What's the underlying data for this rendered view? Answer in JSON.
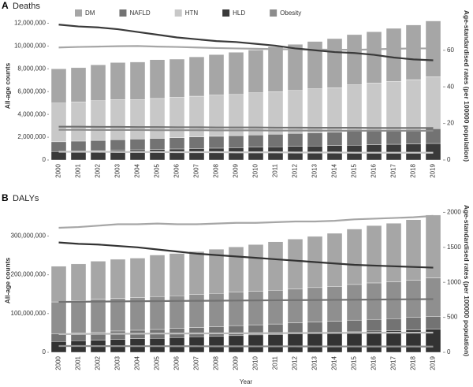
{
  "chart_data": [
    {
      "type": "bar",
      "panel_label": "A",
      "title": "Deaths",
      "legend": "top",
      "ylabel": "All-age counts",
      "y2label": "Age-standardised rates (per 100000 population)",
      "categories": [
        "2000",
        "2001",
        "2002",
        "2003",
        "2004",
        "2005",
        "2006",
        "2007",
        "2008",
        "2009",
        "2010",
        "2011",
        "2012",
        "2013",
        "2014",
        "2015",
        "2016",
        "2017",
        "2018",
        "2019"
      ],
      "ylim": [
        0,
        13000000
      ],
      "yticks": [
        0,
        {
          "value": 2000000,
          "label": "2,000,000"
        },
        {
          "value": 4000000,
          "label": "4,000,000"
        },
        {
          "value": 6000000,
          "label": "6,000,000"
        },
        {
          "value": 8000000,
          "label": "8,000,000"
        },
        {
          "value": 10000000,
          "label": "10,000,000"
        },
        {
          "value": 12000000,
          "label": "12,000,000"
        }
      ],
      "y2lim": [
        0,
        81
      ],
      "y2ticks": [
        0,
        20,
        40,
        60
      ],
      "series": [
        {
          "name": "DM",
          "color": "#a6a6a6",
          "stack_order": 4,
          "values": [
            3000000,
            3000000,
            3150000,
            3250000,
            3300000,
            3400000,
            3350000,
            3450000,
            3550000,
            3700000,
            3750000,
            3950000,
            4050000,
            4150000,
            4300000,
            4400000,
            4500000,
            4650000,
            4800000,
            4900000
          ],
          "rates": [
            61.5,
            61.8,
            62,
            62.2,
            62.3,
            62,
            61.8,
            61.5,
            61.2,
            61,
            60.8,
            60.6,
            60.5,
            60.4,
            60.3,
            60.2,
            60.5,
            60.8,
            61,
            61
          ]
        },
        {
          "name": "NAFLD",
          "color": "#737373",
          "stack_order": 2,
          "values": [
            850000,
            870000,
            900000,
            920000,
            940000,
            970000,
            990000,
            1010000,
            1040000,
            1060000,
            1080000,
            1100000,
            1140000,
            1160000,
            1180000,
            1210000,
            1230000,
            1250000,
            1280000,
            1300000
          ],
          "rates": [
            18.2,
            18.2,
            18.1,
            18.1,
            18,
            18,
            17.9,
            17.9,
            17.8,
            17.8,
            17.8,
            17.7,
            17.7,
            17.6,
            17.6,
            17.6,
            17.5,
            17.5,
            17.5,
            17.5
          ]
        },
        {
          "name": "HTN",
          "color": "#c8c8c8",
          "stack_order": 3,
          "values": [
            3400000,
            3440000,
            3480000,
            3520000,
            3460000,
            3500000,
            3540000,
            3580000,
            3620000,
            3610000,
            3700000,
            3740000,
            3770000,
            3860000,
            3900000,
            4090000,
            4180000,
            4270000,
            4360000,
            4550000
          ],
          "rates": [
            4.5,
            4.5,
            4.5,
            4.4,
            4.4,
            4.4,
            4.3,
            4.3,
            4.3,
            4.2,
            4.2,
            4.2,
            4.1,
            4.1,
            4.1,
            4,
            4,
            4,
            4,
            4
          ]
        },
        {
          "name": "HLD",
          "color": "#3a3a3a",
          "stack_order": 1,
          "values": [
            750000,
            790000,
            820000,
            860000,
            900000,
            930000,
            970000,
            1010000,
            1040000,
            1080000,
            1120000,
            1160000,
            1190000,
            1230000,
            1270000,
            1300000,
            1340000,
            1380000,
            1410000,
            1450000
          ],
          "rates": [
            74,
            73,
            72.5,
            71.5,
            70,
            68.5,
            67,
            66,
            65,
            64.5,
            63.5,
            62.5,
            61,
            60,
            59,
            58.5,
            57.5,
            56,
            55,
            54.5
          ]
        },
        {
          "name": "Obesity",
          "color": "#8c8c8c",
          "stack_order": 5,
          "values": [
            null,
            null,
            null,
            null,
            null,
            null,
            null,
            null,
            null,
            null,
            null,
            null,
            null,
            null,
            null,
            null,
            null,
            null,
            null,
            null
          ],
          "rates": [
            16.5,
            16.5,
            16.4,
            16.4,
            16.4,
            16.3,
            16.3,
            16.3,
            16.2,
            16.2,
            16.2,
            16.1,
            16.1,
            16.1,
            16,
            16,
            16,
            16,
            16,
            16
          ]
        }
      ]
    },
    {
      "type": "bar",
      "panel_label": "B",
      "title": "DALYs",
      "xlabel": "Year",
      "ylabel": "All-age counts",
      "y2label": "Age-standardised rates (per 100000 population)",
      "categories": [
        "2000",
        "2001",
        "2002",
        "2003",
        "2004",
        "2005",
        "2006",
        "2007",
        "2008",
        "2009",
        "2010",
        "2011",
        "2012",
        "2013",
        "2014",
        "2015",
        "2016",
        "2017",
        "2018",
        "2019"
      ],
      "ylim": [
        0,
        370000000
      ],
      "yticks": [
        0,
        {
          "value": 100000000,
          "label": "100,000,000"
        },
        {
          "value": 200000000,
          "label": "200,000,000"
        },
        {
          "value": 300000000,
          "label": "300,000,000"
        }
      ],
      "y2lim": [
        0,
        2050
      ],
      "y2ticks": [
        0,
        500,
        1000,
        1500,
        2000
      ],
      "series": [
        {
          "color": "#a6a6a6",
          "stack_order": 4,
          "values": [
            92000000,
            95000000,
            98000000,
            101000000,
            102000000,
            107000000,
            109000000,
            111000000,
            114000000,
            117000000,
            121000000,
            125000000,
            129000000,
            132000000,
            137000000,
            143000000,
            148000000,
            151000000,
            156000000,
            162000000
          ],
          "rates": [
            1780,
            1790,
            1810,
            1830,
            1830,
            1840,
            1830,
            1830,
            1840,
            1850,
            1850,
            1860,
            1870,
            1870,
            1880,
            1900,
            1910,
            1920,
            1930,
            1950
          ]
        },
        {
          "color": "#737373",
          "stack_order": 2,
          "values": [
            20000000,
            20000000,
            21000000,
            22000000,
            22000000,
            23000000,
            24000000,
            24000000,
            25000000,
            26000000,
            26000000,
            27000000,
            28000000,
            28000000,
            29000000,
            30000000,
            30000000,
            31000000,
            32000000,
            32000000
          ],
          "rates": [
            720,
            722,
            725,
            728,
            730,
            732,
            734,
            736,
            738,
            740,
            742,
            744,
            746,
            748,
            750,
            752,
            754,
            756,
            758,
            760
          ]
        },
        {
          "color": "#8f8f8f",
          "stack_order": 3,
          "values": [
            82000000,
            83000000,
            85000000,
            84000000,
            84000000,
            85000000,
            84000000,
            85000000,
            86000000,
            86000000,
            86000000,
            87000000,
            87000000,
            89000000,
            90000000,
            92000000,
            94000000,
            95000000,
            96000000,
            100000000
          ],
          "rates": [
            90,
            90,
            89,
            89,
            88,
            88,
            87,
            87,
            86,
            86,
            85,
            85,
            85,
            84,
            84,
            84,
            83,
            83,
            83,
            82
          ]
        },
        {
          "color": "#333333",
          "stack_order": 1,
          "values": [
            28000000,
            30000000,
            31000000,
            33000000,
            35000000,
            36000000,
            38000000,
            40000000,
            41000000,
            43000000,
            45000000,
            46000000,
            48000000,
            50000000,
            51000000,
            53000000,
            55000000,
            56000000,
            58000000,
            60000000
          ],
          "rates": [
            1570,
            1550,
            1540,
            1520,
            1500,
            1470,
            1440,
            1410,
            1390,
            1370,
            1350,
            1330,
            1310,
            1290,
            1270,
            1250,
            1240,
            1230,
            1220,
            1210
          ]
        },
        {
          "color": "#bdbdbd",
          "stack_order": 5,
          "values": [
            null,
            null,
            null,
            null,
            null,
            null,
            null,
            null,
            null,
            null,
            null,
            null,
            null,
            null,
            null,
            null,
            null,
            null,
            null,
            null
          ],
          "rates": [
            260,
            262,
            264,
            265,
            266,
            268,
            269,
            270,
            271,
            272,
            273,
            274,
            275,
            276,
            277,
            278,
            279,
            280,
            281,
            282
          ]
        }
      ]
    }
  ]
}
